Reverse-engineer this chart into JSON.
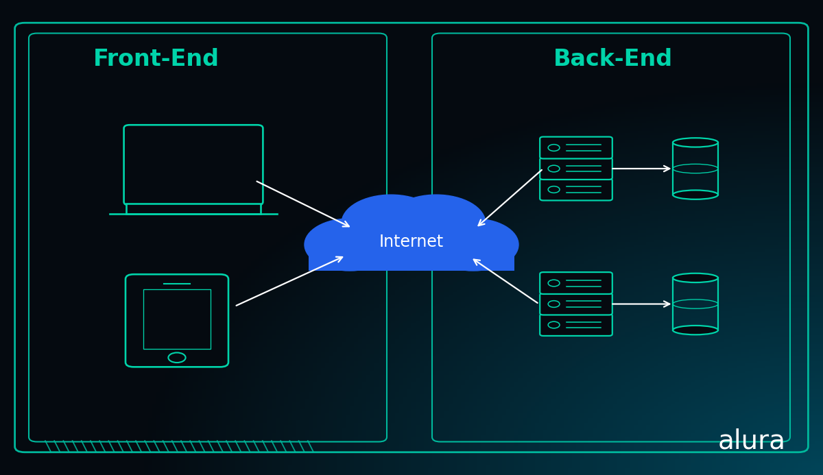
{
  "bg_color": "#050a10",
  "teal_color": "#00d4aa",
  "teal_dark": "#00b89c",
  "teal_dim": "#007a6e",
  "white": "#ffffff",
  "cloud_color": "#2563eb",
  "cloud_text": "Internet",
  "frontend_label": "Front-End",
  "backend_label": "Back-End",
  "alura_text": "alura",
  "title_fontsize": 24,
  "cloud_fontsize": 17,
  "alura_fontsize": 28
}
